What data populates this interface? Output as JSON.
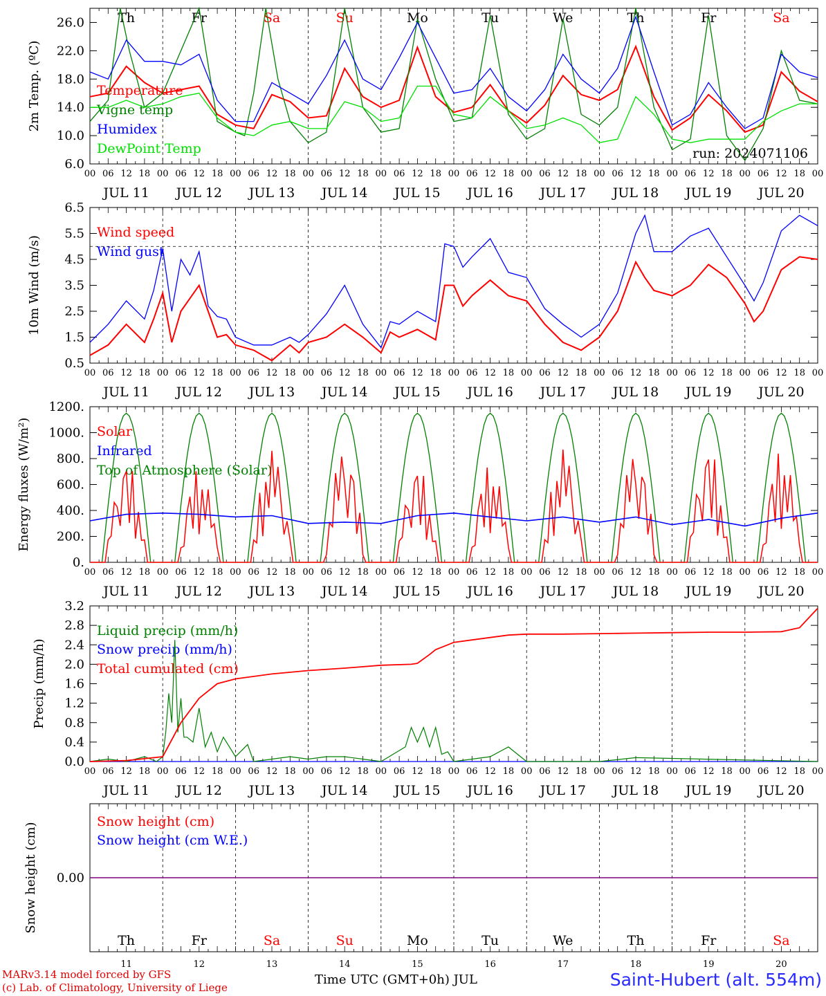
{
  "days": [
    "Th",
    "Fr",
    "Sa",
    "Su",
    "Mo",
    "Tu",
    "We",
    "Th",
    "Fr",
    "Sa"
  ],
  "weekend_flags": [
    false,
    false,
    true,
    true,
    false,
    false,
    false,
    false,
    false,
    true
  ],
  "dates": [
    "JUL 11",
    "JUL 12",
    "JUL 13",
    "JUL 14",
    "JUL 15",
    "JUL 16",
    "JUL 17",
    "JUL 18",
    "JUL 19",
    "JUL 20"
  ],
  "day_numbers": [
    "11",
    "12",
    "13",
    "14",
    "15",
    "16",
    "17",
    "18",
    "19",
    "20"
  ],
  "hour_labels": [
    "00",
    "06",
    "12",
    "18"
  ],
  "hour_end_label": "00",
  "run_label": "run: 2024071106",
  "footer": {
    "model": "MARv3.14 model forced by GFS",
    "lab": "(c) Lab. of Climatology, University of Liege",
    "time_axis": "Time UTC (GMT+0h) JUL",
    "station": "Saint-Hubert (alt. 554m)"
  },
  "colors": {
    "red": "#ff0000",
    "green": "#008000",
    "blue": "#0000ff",
    "lightgreen": "#00e000",
    "purple": "#800080",
    "weekend": "#ff0000"
  },
  "chart_data": [
    {
      "type": "line",
      "ylabel": "2m Temp. (ºC)",
      "ylim": [
        6,
        28
      ],
      "yticks": [
        "6.0",
        "10.0",
        "14.0",
        "18.0",
        "22.0",
        "26.0"
      ],
      "x_units": "hours since JUL 11 00 UTC",
      "legend": [
        "Temperature",
        "Vigne temp",
        "Humidex",
        "DewPoint Temp"
      ],
      "series": [
        {
          "name": "Temperature",
          "color": "red",
          "x": [
            0,
            6,
            12,
            18,
            24,
            30,
            36,
            42,
            48,
            54,
            60,
            66,
            72,
            78,
            84,
            90,
            96,
            102,
            108,
            114,
            120,
            126,
            132,
            138,
            144,
            150,
            156,
            162,
            168,
            174,
            180,
            186,
            192,
            198,
            204,
            210,
            216,
            222,
            228,
            234,
            240
          ],
          "y": [
            15.5,
            16,
            19.8,
            17.5,
            16,
            16.5,
            17,
            13,
            11.5,
            11,
            15.8,
            14.8,
            12.5,
            12.8,
            19.5,
            15.5,
            14,
            15,
            22.5,
            15.5,
            13.3,
            14,
            17.2,
            13.5,
            11.8,
            14.3,
            18.5,
            15.8,
            15,
            16.5,
            22.6,
            15.5,
            10.8,
            12.5,
            15.8,
            13.5,
            10.5,
            11.5,
            19,
            16.3,
            14.8
          ]
        },
        {
          "name": "Vigne temp",
          "color": "green",
          "x": [
            0,
            6,
            10,
            13,
            18,
            24,
            30,
            36,
            42,
            48,
            51,
            54,
            58,
            62,
            66,
            72,
            78,
            84,
            90,
            96,
            102,
            108,
            114,
            120,
            126,
            132,
            138,
            144,
            150,
            156,
            162,
            168,
            174,
            180,
            186,
            192,
            198,
            204,
            210,
            216,
            222,
            228,
            234,
            240
          ],
          "y": [
            12,
            15,
            28,
            22,
            14,
            16,
            22,
            28,
            12,
            10.5,
            10,
            16,
            28,
            18,
            12,
            9,
            10.5,
            28,
            14,
            10.5,
            11,
            26.5,
            18,
            12,
            12.5,
            27,
            13,
            9.5,
            11,
            26.5,
            13,
            11.5,
            14,
            28,
            14,
            8,
            9.5,
            27,
            10,
            6.5,
            11,
            22,
            15,
            14.5
          ]
        },
        {
          "name": "Humidex",
          "color": "blue",
          "x": [
            0,
            6,
            12,
            18,
            24,
            30,
            36,
            42,
            48,
            54,
            60,
            66,
            72,
            78,
            84,
            90,
            96,
            102,
            108,
            114,
            120,
            126,
            132,
            138,
            144,
            150,
            156,
            162,
            168,
            174,
            180,
            186,
            192,
            198,
            204,
            210,
            216,
            222,
            228,
            234,
            240
          ],
          "y": [
            19,
            18,
            23.5,
            20.5,
            20.5,
            20,
            21.5,
            15,
            12,
            12,
            17.5,
            16,
            14.5,
            18.5,
            23.5,
            18,
            16.5,
            21,
            26,
            21,
            16,
            16.5,
            19.5,
            15.5,
            13.5,
            16.5,
            21.5,
            18,
            16,
            19.5,
            26.8,
            19,
            11.5,
            13,
            17.5,
            14,
            11,
            12.5,
            21.5,
            19,
            18.2
          ]
        },
        {
          "name": "DewPoint Temp",
          "color": "lightgreen",
          "x": [
            0,
            6,
            12,
            18,
            24,
            30,
            36,
            42,
            48,
            54,
            60,
            66,
            72,
            78,
            84,
            90,
            96,
            102,
            108,
            114,
            120,
            126,
            132,
            138,
            144,
            150,
            156,
            162,
            168,
            174,
            180,
            186,
            192,
            198,
            204,
            210,
            216,
            222,
            228,
            234,
            240
          ],
          "y": [
            14,
            14,
            15,
            14,
            14.5,
            15.5,
            16,
            12.5,
            10.5,
            10,
            11.5,
            12,
            11,
            11,
            14.8,
            14,
            12,
            12.5,
            17,
            17,
            13,
            12.5,
            15.5,
            13.5,
            11,
            11.5,
            12.5,
            11.5,
            9,
            9.5,
            15.5,
            13,
            9.5,
            9,
            9.5,
            9.5,
            9.5,
            12,
            13.5,
            14.5,
            14.5
          ]
        }
      ]
    },
    {
      "type": "line",
      "ylabel": "10m Wind (m/s)",
      "ylim": [
        0.5,
        6.5
      ],
      "yticks": [
        "0.5",
        "1.5",
        "2.5",
        "3.5",
        "4.5",
        "5.5",
        "6.5"
      ],
      "reference_line": 5.0,
      "legend": [
        "Wind speed",
        "Wind gust"
      ],
      "series": [
        {
          "name": "Wind speed",
          "color": "red",
          "x": [
            0,
            6,
            12,
            18,
            21,
            24,
            27,
            30,
            33,
            36,
            39,
            42,
            45,
            48,
            54,
            60,
            66,
            69,
            72,
            78,
            84,
            90,
            96,
            99,
            102,
            108,
            114,
            117,
            120,
            123,
            126,
            132,
            138,
            144,
            150,
            156,
            162,
            168,
            174,
            180,
            183,
            186,
            192,
            198,
            204,
            210,
            216,
            219,
            222,
            228,
            234,
            240
          ],
          "y": [
            0.8,
            1.2,
            2,
            1.3,
            2.2,
            3.2,
            1.3,
            2.5,
            3,
            3.5,
            2.5,
            1.5,
            1.6,
            1.2,
            1,
            0.6,
            1.2,
            0.9,
            1.3,
            1.5,
            2,
            1.5,
            0.9,
            1.7,
            1.5,
            1.8,
            1.4,
            3.5,
            3.5,
            2.7,
            3.1,
            3.7,
            3.1,
            2.9,
            2,
            1.3,
            1,
            1.5,
            2.5,
            4.4,
            3.8,
            3.3,
            3.1,
            3.5,
            4.3,
            3.8,
            2.8,
            2.1,
            2.5,
            4.1,
            4.6,
            4.5
          ]
        },
        {
          "name": "Wind gust",
          "color": "blue",
          "x": [
            0,
            6,
            12,
            18,
            21,
            24,
            27,
            30,
            33,
            36,
            39,
            42,
            45,
            48,
            54,
            60,
            66,
            69,
            72,
            78,
            84,
            90,
            96,
            99,
            102,
            108,
            114,
            117,
            120,
            123,
            126,
            132,
            138,
            144,
            150,
            156,
            162,
            168,
            174,
            180,
            183,
            186,
            192,
            198,
            204,
            210,
            216,
            219,
            222,
            228,
            234,
            240
          ],
          "y": [
            1.3,
            2,
            2.9,
            2.2,
            3.3,
            4.9,
            2.5,
            4.5,
            3.9,
            4.8,
            2.7,
            2.3,
            2.2,
            1.5,
            1.2,
            1.2,
            1.5,
            1.3,
            1.6,
            2.4,
            3.5,
            2,
            1.1,
            2.1,
            2,
            2.5,
            2.1,
            5.1,
            5,
            4.2,
            4.6,
            5.3,
            4,
            3.8,
            2.6,
            2,
            1.5,
            2,
            3.2,
            5.5,
            6.2,
            4.8,
            4.8,
            5.4,
            5.7,
            4.6,
            3.5,
            2.9,
            3.6,
            5.6,
            6.2,
            5.8
          ]
        }
      ]
    },
    {
      "type": "line",
      "ylabel": "Energy fluxes (W/m²)",
      "ylim": [
        0,
        1200
      ],
      "yticks": [
        "0.",
        "200.",
        "400.",
        "600.",
        "800.",
        "1000.",
        "1200."
      ],
      "legend": [
        "Solar",
        "Infrared",
        "Top of Atmosphere (Solar)"
      ],
      "toa_peak": 1150,
      "solar_peaks": [
        780,
        720,
        860,
        880,
        740,
        750,
        870,
        860,
        880,
        860
      ],
      "infrared": {
        "x": [
          0,
          12,
          24,
          36,
          48,
          60,
          72,
          84,
          96,
          108,
          120,
          132,
          144,
          156,
          168,
          180,
          192,
          204,
          216,
          228,
          240
        ],
        "y": [
          320,
          370,
          380,
          370,
          350,
          360,
          300,
          310,
          300,
          360,
          380,
          350,
          320,
          350,
          310,
          350,
          290,
          330,
          280,
          340,
          380
        ]
      }
    },
    {
      "type": "line",
      "ylabel": "Precip (mm/h)",
      "ylim": [
        0,
        3.2
      ],
      "yticks": [
        "0.0",
        "0.4",
        "0.8",
        "1.2",
        "1.6",
        "2.0",
        "2.4",
        "2.8",
        "3.2"
      ],
      "legend": [
        "Liquid precip (mm/h)",
        "Snow precip (mm/h)",
        "Total cumulated (cm)"
      ],
      "series": [
        {
          "name": "Liquid precip (mm/h)",
          "color": "green",
          "x": [
            0,
            6,
            12,
            18,
            22,
            24,
            25,
            26,
            27,
            28,
            29,
            30,
            31,
            32,
            34,
            36,
            38,
            40,
            42,
            44,
            48,
            52,
            54,
            60,
            66,
            72,
            78,
            84,
            90,
            96,
            104,
            106,
            108,
            110,
            112,
            114,
            116,
            118,
            120,
            126,
            132,
            138,
            144,
            168,
            180,
            240
          ],
          "y": [
            0,
            0.05,
            0,
            0.1,
            0,
            0.1,
            0.6,
            1.4,
            0.8,
            2.5,
            0.6,
            1.3,
            0.5,
            0.5,
            0.4,
            1.1,
            0.3,
            0.6,
            0.2,
            0.5,
            0.1,
            0.35,
            0,
            0.05,
            0.1,
            0.05,
            0.1,
            0.1,
            0.05,
            0,
            0.3,
            0.7,
            0.4,
            0.7,
            0.3,
            0.7,
            0.15,
            0.2,
            0,
            0.05,
            0.1,
            0.3,
            0,
            0,
            0.08,
            0
          ]
        },
        {
          "name": "Total cumulated (cm)",
          "color": "red",
          "x": [
            0,
            12,
            24,
            30,
            36,
            42,
            48,
            60,
            72,
            84,
            96,
            106,
            108,
            112,
            114,
            118,
            120,
            126,
            132,
            138,
            144,
            156,
            168,
            180,
            192,
            204,
            216,
            228,
            234,
            240
          ],
          "y": [
            0,
            0.02,
            0.1,
            0.8,
            1.3,
            1.6,
            1.7,
            1.8,
            1.87,
            1.92,
            1.98,
            2.0,
            2.02,
            2.2,
            2.3,
            2.4,
            2.45,
            2.5,
            2.55,
            2.6,
            2.62,
            2.62,
            2.63,
            2.64,
            2.65,
            2.66,
            2.66,
            2.67,
            2.75,
            3.15
          ]
        }
      ]
    },
    {
      "type": "line",
      "ylabel": "Snow height (cm)",
      "yticks": [
        "0.00"
      ],
      "legend": [
        "Snow height (cm)",
        "Snow height (cm W.E.)"
      ],
      "series": [
        {
          "name": "Snow height (cm)",
          "color": "red",
          "x": [
            0,
            240
          ],
          "y": [
            0,
            0
          ]
        },
        {
          "name": "Snow height (cm W.E.)",
          "color": "blue",
          "x": [
            0,
            240
          ],
          "y": [
            0,
            0
          ]
        }
      ]
    }
  ]
}
